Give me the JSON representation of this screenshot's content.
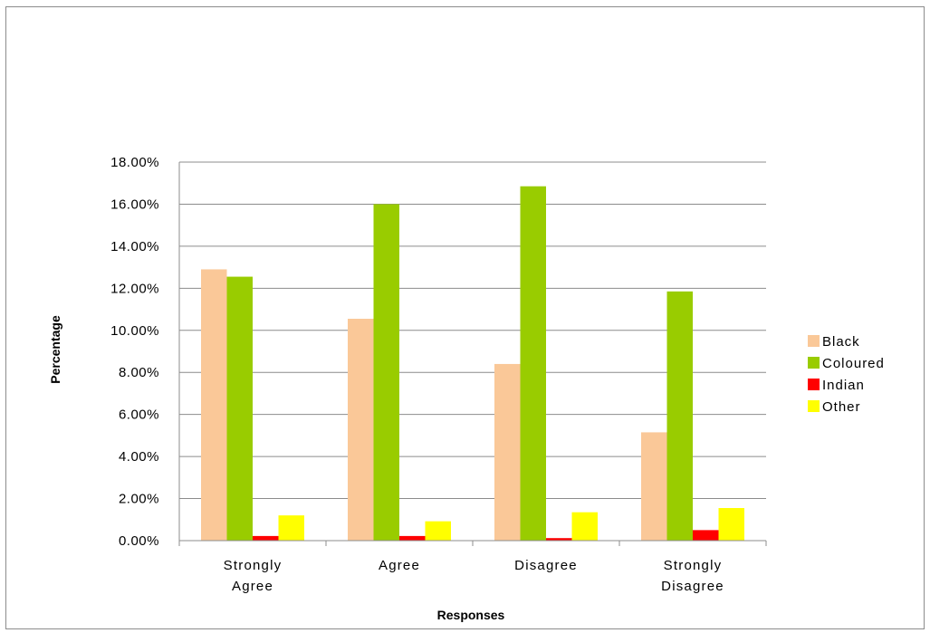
{
  "chart_data": {
    "type": "bar",
    "categories": [
      [
        "Strongly",
        "Agree"
      ],
      [
        "Agree"
      ],
      [
        "Disagree"
      ],
      [
        "Strongly",
        "Disagree"
      ]
    ],
    "series": [
      {
        "name": "Black",
        "color": "#FAC898",
        "values": [
          12.9,
          10.55,
          8.4,
          5.15
        ]
      },
      {
        "name": "Coloured",
        "color": "#99CC00",
        "values": [
          12.55,
          16.0,
          16.85,
          11.85
        ]
      },
      {
        "name": "Indian",
        "color": "#FF0000",
        "values": [
          0.22,
          0.22,
          0.12,
          0.5
        ]
      },
      {
        "name": "Other",
        "color": "#FFFF00",
        "values": [
          1.2,
          0.92,
          1.35,
          1.55
        ]
      }
    ],
    "xlabel": "Responses",
    "ylabel": "Percentage",
    "ylim": [
      0,
      18
    ],
    "ytick_step": 2,
    "ytick_labels": [
      "0.00%",
      "2.00%",
      "4.00%",
      "6.00%",
      "8.00%",
      "10.00%",
      "12.00%",
      "14.00%",
      "16.00%",
      "18.00%"
    ],
    "grid": true,
    "legend_position": "right"
  }
}
